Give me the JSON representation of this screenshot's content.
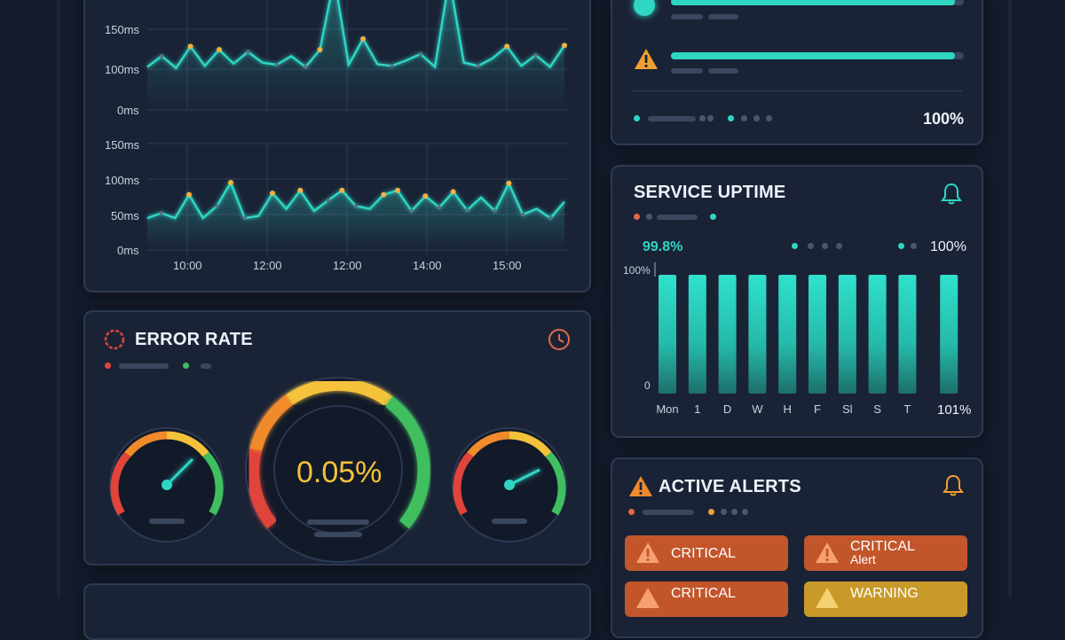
{
  "latency_chart": {
    "upper": {
      "y_ticks": [
        "150ms",
        "100ms",
        "0ms"
      ],
      "values": [
        80,
        100,
        78,
        118,
        82,
        112,
        86,
        108,
        88,
        84,
        100,
        80,
        112,
        200,
        84,
        132,
        85,
        82,
        92,
        104,
        80,
        200,
        88,
        82,
        96,
        118,
        82,
        102,
        80,
        120
      ]
    },
    "lower": {
      "y_ticks": [
        "150ms",
        "100ms",
        "50ms",
        "0ms"
      ],
      "values": [
        45,
        52,
        45,
        78,
        45,
        62,
        95,
        45,
        48,
        80,
        58,
        84,
        55,
        70,
        84,
        62,
        58,
        78,
        84,
        55,
        76,
        60,
        82,
        56,
        74,
        55,
        94,
        50,
        58,
        45,
        68
      ]
    },
    "x_ticks": [
      "10:00",
      "12:00",
      "12:00",
      "14:00",
      "15:00"
    ]
  },
  "top_status": {
    "percent": "100%"
  },
  "service_uptime": {
    "title": "SERVICE UPTIME",
    "value": "99.8%",
    "right_value": "100%",
    "y_ticks": [
      "100%",
      "0"
    ],
    "days": [
      "Mon",
      "1",
      "D",
      "W",
      "H",
      "F",
      "Sl",
      "S",
      "T",
      "101%"
    ],
    "bar_values": [
      100,
      100,
      100,
      100,
      100,
      100,
      100,
      100,
      100,
      100
    ]
  },
  "error_rate": {
    "title": "ERROR RATE",
    "value": "0.05%"
  },
  "active_alerts": {
    "title": "ACTIVE ALERTS",
    "alerts": [
      {
        "label": "CRITICAL",
        "sub": ""
      },
      {
        "label": "CRITICAL",
        "sub": "Alert"
      },
      {
        "label": "CRITICAL",
        "sub": ""
      },
      {
        "label": "WARNING",
        "sub": ""
      }
    ]
  },
  "colors": {
    "accent": "#2fd6c4",
    "critical": "#c85a2a",
    "warning": "#c99a2a",
    "gauge_red": "#e0443a",
    "gauge_orange": "#f08a2a",
    "gauge_yellow": "#f4c23a",
    "gauge_green": "#3fbf5f"
  }
}
